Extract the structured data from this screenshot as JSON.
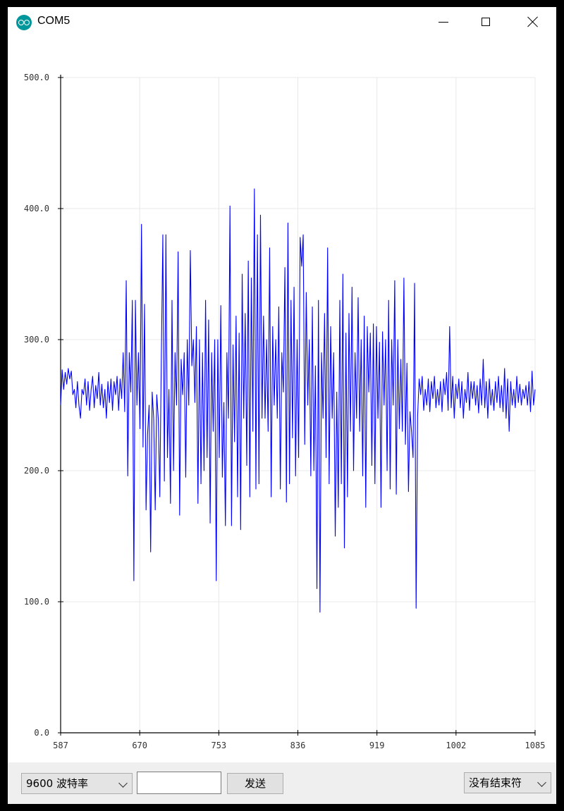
{
  "window": {
    "title": "COM5",
    "app_icon": "arduino-icon",
    "controls": [
      "minimize-icon",
      "maximize-icon",
      "close-icon"
    ]
  },
  "chart_data": {
    "type": "line",
    "xlim": [
      587,
      1085
    ],
    "ylim": [
      0,
      500
    ],
    "x_ticks": [
      "587",
      "670",
      "753",
      "836",
      "919",
      "1002",
      "1085"
    ],
    "y_ticks": [
      "0.0",
      "100.0",
      "200.0",
      "300.0",
      "400.0",
      "500.0"
    ],
    "grid": true,
    "series": [
      {
        "color": "#0000ff",
        "x_start": 587,
        "values": [
          250,
          277,
          262,
          275,
          266,
          278,
          270,
          276,
          258,
          262,
          248,
          268,
          250,
          240,
          262,
          258,
          270,
          250,
          268,
          246,
          262,
          272,
          248,
          265,
          255,
          275,
          250,
          266,
          248,
          262,
          240,
          268,
          252,
          270,
          246,
          268,
          258,
          272,
          246,
          270,
          255,
          290,
          245,
          345,
          196,
          290,
          260,
          330,
          116,
          330,
          250,
          290,
          232,
          388,
          218,
          327,
          170,
          228,
          250,
          138,
          260,
          240,
          170,
          258,
          240,
          180,
          285,
          380,
          192,
          380,
          210,
          262,
          175,
          330,
          200,
          290,
          250,
          367,
          166,
          285,
          258,
          290,
          195,
          300,
          250,
          368,
          280,
          300,
          252,
          310,
          175,
          300,
          190,
          290,
          200,
          330,
          210,
          315,
          160,
          290,
          230,
          300,
          116,
          300,
          210,
          326,
          195,
          252,
          158,
          290,
          240,
          402,
          158,
          296,
          222,
          318,
          180,
          305,
          155,
          350,
          240,
          320,
          204,
          360,
          180,
          347,
          230,
          415,
          186,
          380,
          190,
          395,
          240,
          318,
          240,
          300,
          230,
          370,
          180,
          310,
          250,
          300,
          240,
          325,
          186,
          290,
          260,
          355,
          176,
          389,
          190,
          330,
          225,
          340,
          196,
          300,
          210,
          378,
          356,
          380,
          220,
          336,
          250,
          300,
          196,
          325,
          200,
          280,
          110,
          330,
          92,
          290,
          240,
          320,
          210,
          370,
          190,
          310,
          240,
          290,
          150,
          260,
          172,
          330,
          190,
          350,
          141,
          305,
          180,
          320,
          230,
          340,
          200,
          290,
          240,
          332,
          230,
          300,
          196,
          318,
          172,
          310,
          260,
          305,
          204,
          312,
          190,
          310,
          240,
          298,
          172,
          306,
          250,
          300,
          200,
          330,
          186,
          300,
          250,
          345,
          182,
          300,
          232,
          285,
          230,
          347,
          220,
          282,
          184,
          245,
          230,
          210,
          343,
          95,
          242,
          270,
          258,
          272,
          246,
          262,
          250,
          270,
          245,
          268,
          255,
          272,
          248,
          262,
          250,
          268,
          245,
          270,
          258,
          275,
          246,
          310,
          248,
          272,
          240,
          266,
          255,
          270,
          248,
          268,
          240,
          262,
          252,
          275,
          246,
          268,
          255,
          268,
          250,
          265,
          244,
          270,
          250,
          285,
          248,
          268,
          240,
          270,
          250,
          262,
          246,
          268,
          252,
          272,
          248,
          265,
          245,
          278,
          240,
          270,
          230,
          268,
          250,
          262,
          248,
          272,
          252,
          266,
          250,
          262,
          255,
          265,
          250,
          268,
          245,
          276,
          250,
          262
        ]
      }
    ]
  },
  "bottom": {
    "baud_select": "9600 波特率",
    "send_input_value": "",
    "send_button": "发送",
    "line_ending_select": "没有结束符"
  }
}
